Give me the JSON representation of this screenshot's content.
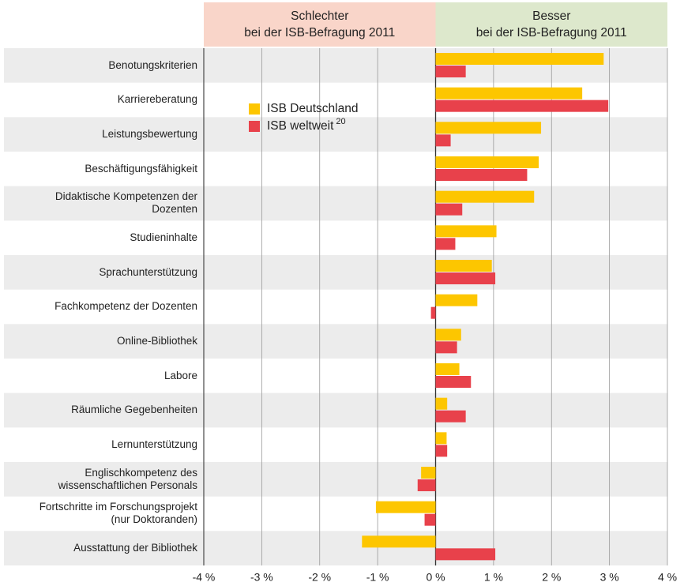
{
  "chart_data": {
    "type": "hbar",
    "header_left": "Schlechter\nbei der ISB-Befragung 2011",
    "header_right": "Besser\nbei der ISB-Befragung 2011",
    "categories": [
      "Benotungskriterien",
      "Karriereberatung",
      "Leistungsbewertung",
      "Beschäftigungsfähigkeit",
      "Didaktische Kompetenzen der\nDozenten",
      "Studieninhalte",
      "Sprachunterstützung",
      "Fachkompetenz der Dozenten",
      "Online-Bibliothek",
      "Labore",
      "Räumliche Gegebenheiten",
      "Lernunterstützung",
      "Englischkompetenz des\nwissenschaftlichen Personals",
      "Fortschritte im Forschungsprojekt\n(nur Doktoranden)",
      "Ausstattung der Bibliothek"
    ],
    "series": [
      {
        "name": "ISB Deutschland",
        "color": "#fdc600",
        "values": [
          2.9,
          2.53,
          1.82,
          1.78,
          1.7,
          1.05,
          0.97,
          0.72,
          0.44,
          0.41,
          0.2,
          0.19,
          -0.25,
          -1.03,
          -1.27
        ]
      },
      {
        "name": "ISB weltweit",
        "footnote": "20",
        "color": "#e8414b",
        "values": [
          0.52,
          2.98,
          0.26,
          1.58,
          0.46,
          0.34,
          1.03,
          -0.08,
          0.37,
          0.61,
          0.52,
          0.2,
          -0.31,
          -0.19,
          1.03
        ]
      }
    ],
    "xlim": [
      -4,
      4
    ],
    "xticks": [
      {
        "value": -4,
        "label": "-4 %"
      },
      {
        "value": -3,
        "label": "-3 %"
      },
      {
        "value": -2,
        "label": "-2 %"
      },
      {
        "value": -1,
        "label": "-1 %"
      },
      {
        "value": 0,
        "label": "0 %"
      },
      {
        "value": 1,
        "label": "1 %"
      },
      {
        "value": 2,
        "label": "2 %"
      },
      {
        "value": 3,
        "label": "3 %"
      },
      {
        "value": 4,
        "label": "4 %"
      }
    ],
    "grid": true,
    "colors": {
      "header_left": "#f9d5c9",
      "header_right": "#dde8cc",
      "band": "#ececec"
    }
  }
}
